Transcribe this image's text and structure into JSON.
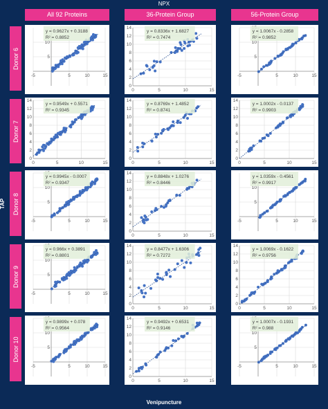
{
  "header": {
    "top": "NPX",
    "bottom": "Venipuncture",
    "side": "TAP"
  },
  "columns": [
    "All 92 Proteins",
    "36-Protein Group",
    "56-Protein Group"
  ],
  "rows": [
    "Donor 6",
    "Donor 7",
    "Donor 8",
    "Donor 9",
    "Donor 10"
  ],
  "colors": {
    "background": "#0b2a57",
    "accent": "#e8358f",
    "points": "#4472c4",
    "label_box": "#e2efd9"
  },
  "chart_data": [
    {
      "type": "scatter",
      "row": "Donor 6",
      "column": "All 92 Proteins",
      "xlim": [
        -5,
        15
      ],
      "ylim": [
        -5,
        15
      ],
      "xticks": [
        -5,
        5,
        10,
        15
      ],
      "yticks": [
        5,
        10
      ],
      "equation": "y = 0.9627x + 0.3188",
      "r2": "R² = 0.8852",
      "slope": 0.9627,
      "intercept": 0.3188,
      "n": 90
    },
    {
      "type": "scatter",
      "row": "Donor 6",
      "column": "36-Protein Group",
      "xlim": [
        0,
        15
      ],
      "ylim": [
        0,
        14
      ],
      "xticks": [
        0,
        5,
        10,
        15
      ],
      "yticks": [
        0,
        2,
        4,
        6,
        8,
        10,
        12,
        14
      ],
      "equation": "y = 0.8336x + 1.6827",
      "r2": "R² = 0.7474",
      "slope": 0.8336,
      "intercept": 1.6827,
      "n": 35
    },
    {
      "type": "scatter",
      "row": "Donor 6",
      "column": "56-Protein Group",
      "xlim": [
        -5,
        15
      ],
      "ylim": [
        -5,
        15
      ],
      "xticks": [
        -5,
        5,
        10,
        15
      ],
      "yticks": [
        5,
        10,
        15
      ],
      "equation": "y = 1.0067x - 0.2858",
      "r2": "R² = 0.9852",
      "slope": 1.0067,
      "intercept": -0.2858,
      "n": 55
    },
    {
      "type": "scatter",
      "row": "Donor 7",
      "column": "All 92 Proteins",
      "xlim": [
        0,
        15
      ],
      "ylim": [
        0,
        14
      ],
      "xticks": [
        0,
        5,
        10,
        15
      ],
      "yticks": [
        0,
        2,
        4,
        6,
        8,
        10,
        12,
        14
      ],
      "equation": "y = 0.9549x + 0.5571",
      "r2": "R² = 0.9345",
      "slope": 0.9549,
      "intercept": 0.5571,
      "n": 90
    },
    {
      "type": "scatter",
      "row": "Donor 7",
      "column": "36-Protein Group",
      "xlim": [
        0,
        15
      ],
      "ylim": [
        0,
        14
      ],
      "xticks": [
        0,
        5,
        10,
        15
      ],
      "yticks": [
        0,
        2,
        4,
        6,
        8,
        10,
        12,
        14
      ],
      "equation": "y = 0.8769x + 1.4852",
      "r2": "R² = 0.8741",
      "slope": 0.8769,
      "intercept": 1.4852,
      "n": 35
    },
    {
      "type": "scatter",
      "row": "Donor 7",
      "column": "56-Protein Group",
      "xlim": [
        0,
        15
      ],
      "ylim": [
        0,
        14
      ],
      "xticks": [
        0,
        5,
        10,
        15
      ],
      "yticks": [
        0,
        2,
        4,
        6,
        8,
        10,
        12,
        14
      ],
      "equation": "y = 1.0002x - 0.0137",
      "r2": "R² = 0.9903",
      "slope": 1.0002,
      "intercept": -0.0137,
      "n": 55
    },
    {
      "type": "scatter",
      "row": "Donor 8",
      "column": "All 92 Proteins",
      "xlim": [
        -5,
        15
      ],
      "ylim": [
        -5,
        15
      ],
      "xticks": [
        -5,
        5,
        10,
        15
      ],
      "yticks": [
        5,
        10,
        15
      ],
      "equation": "y = 0.9945x - 0.0007",
      "r2": "R² = 0.9347",
      "slope": 0.9945,
      "intercept": -0.0007,
      "n": 90
    },
    {
      "type": "scatter",
      "row": "Donor 8",
      "column": "36-Protein Group",
      "xlim": [
        0,
        15
      ],
      "ylim": [
        0,
        14
      ],
      "xticks": [
        0,
        5,
        10,
        15
      ],
      "yticks": [
        0,
        2,
        4,
        6,
        8,
        10,
        12,
        14
      ],
      "equation": "y = 0.8848x + 1.0276",
      "r2": "R² = 0.8446",
      "slope": 0.8848,
      "intercept": 1.0276,
      "n": 35
    },
    {
      "type": "scatter",
      "row": "Donor 8",
      "column": "56-Protein Group",
      "xlim": [
        -5,
        15
      ],
      "ylim": [
        -5,
        15
      ],
      "xticks": [
        -5,
        5,
        10,
        15
      ],
      "yticks": [
        5,
        10
      ],
      "equation": "y = 1.0359x - 0.4561",
      "r2": "R² = 0.9917",
      "slope": 1.0359,
      "intercept": -0.4561,
      "n": 55
    },
    {
      "type": "scatter",
      "row": "Donor 9",
      "column": "All 92 Proteins",
      "xlim": [
        -5,
        15
      ],
      "ylim": [
        -5,
        15
      ],
      "xticks": [
        -5,
        5,
        10,
        15
      ],
      "yticks": [
        5,
        10,
        15
      ],
      "equation": "y = 0.966x + 0.3891",
      "r2": "R² = 0.8801",
      "slope": 0.966,
      "intercept": 0.3891,
      "n": 90
    },
    {
      "type": "scatter",
      "row": "Donor 9",
      "column": "36-Protein Group",
      "xlim": [
        0,
        15
      ],
      "ylim": [
        0,
        14
      ],
      "xticks": [
        0,
        5,
        10,
        15
      ],
      "yticks": [
        0,
        2,
        4,
        6,
        8,
        10,
        12,
        14
      ],
      "equation": "y = 0.8477x + 1.6306",
      "r2": "R² = 0.7272",
      "slope": 0.8477,
      "intercept": 1.6306,
      "n": 35
    },
    {
      "type": "scatter",
      "row": "Donor 9",
      "column": "56-Protein Group",
      "xlim": [
        0,
        15
      ],
      "ylim": [
        0,
        14
      ],
      "xticks": [
        0,
        5,
        10,
        15
      ],
      "yticks": [
        0,
        2,
        4,
        6,
        8,
        10,
        12,
        14
      ],
      "equation": "y = 1.0069x - 0.1622",
      "r2": "R² = 0.9756",
      "slope": 1.0069,
      "intercept": -0.1622,
      "n": 55
    },
    {
      "type": "scatter",
      "row": "Donor 10",
      "column": "All 92 Proteins",
      "xlim": [
        -5,
        15
      ],
      "ylim": [
        -5,
        15
      ],
      "xticks": [
        -5,
        5,
        10,
        15
      ],
      "yticks": [
        5,
        10,
        15
      ],
      "equation": "y = 0.9899x + 0.078",
      "r2": "R² = 0.9564",
      "slope": 0.9899,
      "intercept": 0.078,
      "n": 90
    },
    {
      "type": "scatter",
      "row": "Donor 10",
      "column": "36-Protein Group",
      "xlim": [
        0,
        15
      ],
      "ylim": [
        0,
        14
      ],
      "xticks": [
        0,
        5,
        10,
        15
      ],
      "yticks": [
        0,
        2,
        4,
        6,
        8,
        10,
        12,
        14
      ],
      "equation": "y = 0.9492x + 0.6531",
      "r2": "R² = 0.9146",
      "slope": 0.9492,
      "intercept": 0.6531,
      "n": 35
    },
    {
      "type": "scatter",
      "row": "Donor 10",
      "column": "56-Protein Group",
      "xlim": [
        -5,
        15
      ],
      "ylim": [
        -5,
        15
      ],
      "xticks": [
        -5,
        5,
        10,
        15
      ],
      "yticks": [
        5,
        10,
        15
      ],
      "equation": "y = 1.0007x - 0.1931",
      "r2": "R² = 0.988",
      "slope": 1.0007,
      "intercept": -0.1931,
      "n": 55
    }
  ]
}
